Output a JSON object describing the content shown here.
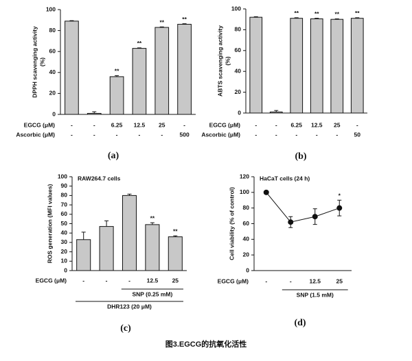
{
  "chart_data": [
    {
      "type": "bar",
      "panel_label": "(a)",
      "ylabel": [
        "DPPH scavenging activity",
        "(%)"
      ],
      "rows": [
        {
          "label": "EGCG (μM)",
          "cells": [
            "-",
            "-",
            "6.25",
            "12.5",
            "25",
            "-"
          ]
        },
        {
          "label": "Ascorbic (μM)",
          "cells": [
            "-",
            "-",
            "-",
            "-",
            "-",
            "500"
          ]
        }
      ],
      "values": [
        89,
        1,
        36,
        63,
        83,
        86
      ],
      "errors": [
        0.5,
        1.5,
        1,
        0.5,
        0.5,
        0.5
      ],
      "significance": [
        null,
        null,
        "**",
        "**",
        "**",
        "**"
      ],
      "color": "#c8c8c8",
      "ylim": [
        0,
        100
      ],
      "yticks": [
        0,
        20,
        40,
        60,
        80,
        100
      ]
    },
    {
      "type": "bar",
      "panel_label": "(b)",
      "ylabel": [
        "ABTS scavenging activity",
        "(%)"
      ],
      "rows": [
        {
          "label": "EGCG (μM)",
          "cells": [
            "-",
            "-",
            "6.25",
            "12.5",
            "25",
            "-"
          ]
        },
        {
          "label": "Ascorbic (μM)",
          "cells": [
            "-",
            "-",
            "-",
            "-",
            "-",
            "50"
          ]
        }
      ],
      "values": [
        92,
        1,
        91,
        90.5,
        90,
        91
      ],
      "errors": [
        0.5,
        1.5,
        0.5,
        0.5,
        0.5,
        0.5
      ],
      "significance": [
        null,
        null,
        "**",
        "**",
        "**",
        "**"
      ],
      "color": "#c8c8c8",
      "ylim": [
        0,
        100
      ],
      "yticks": [
        0,
        20,
        40,
        60,
        80,
        100
      ]
    },
    {
      "type": "bar",
      "panel_label": "(c)",
      "title": "RAW264.7 cells",
      "ylabel": [
        "ROS generation (MFI values)"
      ],
      "rows": [
        {
          "label": "EGCG (μM)",
          "cells": [
            "-",
            "-",
            "-",
            "12.5",
            "25"
          ]
        }
      ],
      "brackets": [
        {
          "label": "SNP (0.25 mM)",
          "from": 2,
          "to": 4
        },
        {
          "label": "DHR123 (20 μM)",
          "from": 0,
          "to": 4
        }
      ],
      "values": [
        33,
        47,
        80,
        49,
        36
      ],
      "errors": [
        8,
        6,
        1.5,
        2,
        1
      ],
      "significance": [
        null,
        null,
        null,
        "**",
        "**"
      ],
      "color": "#c8c8c8",
      "ylim": [
        0,
        100
      ],
      "yticks": [
        0,
        10,
        20,
        30,
        40,
        50,
        60,
        70,
        80,
        90,
        100
      ]
    },
    {
      "type": "line",
      "panel_label": "(d)",
      "title": "HaCaT cells (24 h)",
      "ylabel": [
        "Cell viability (% of control)"
      ],
      "rows": [
        {
          "label": "EGCG (μM)",
          "cells": [
            "-",
            "-",
            "12.5",
            "25"
          ]
        }
      ],
      "brackets": [
        {
          "label": "SNP (1.5 mM)",
          "from": 1,
          "to": 3
        }
      ],
      "values": [
        100,
        62,
        69,
        80
      ],
      "errors": [
        2,
        7,
        10,
        10
      ],
      "significance": [
        null,
        null,
        null,
        "*"
      ],
      "color": "#111111",
      "ylim": [
        0,
        120
      ],
      "yticks": [
        0,
        20,
        40,
        60,
        80,
        100,
        120
      ]
    }
  ],
  "caption": "图3.EGCG的抗氧化活性"
}
